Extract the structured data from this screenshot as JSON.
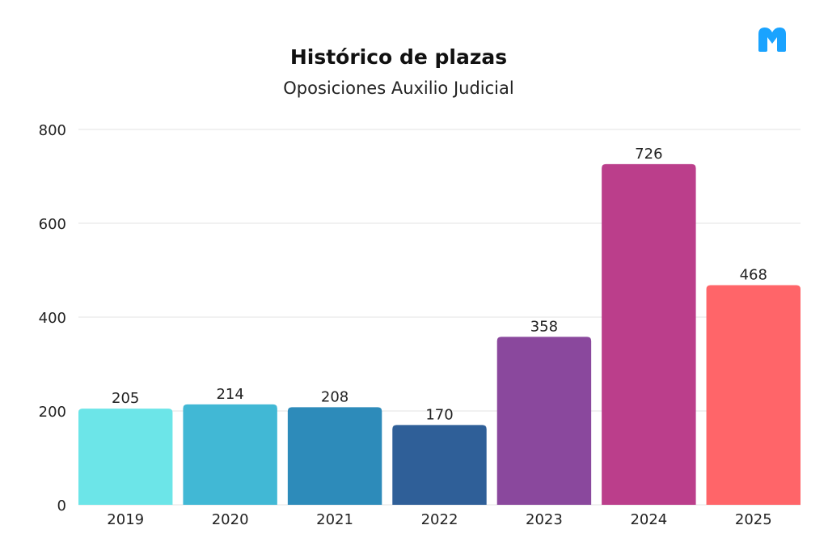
{
  "brand_color": "#1aa3ff",
  "chart_data": {
    "type": "bar",
    "title": "Histórico de plazas",
    "subtitle": "Oposiciones Auxilio Judicial",
    "xlabel": "",
    "ylabel": "",
    "categories": [
      "2019",
      "2020",
      "2021",
      "2022",
      "2023",
      "2024",
      "2025"
    ],
    "values": [
      205,
      214,
      208,
      170,
      358,
      726,
      468
    ],
    "colors": [
      "#6ce5e8",
      "#41b8d5",
      "#2d8bba",
      "#2f5f98",
      "#8a489d",
      "#bb3e8b",
      "#ff6569"
    ],
    "yticks": [
      0,
      200,
      400,
      600,
      800
    ],
    "ylim": [
      0,
      800
    ],
    "grid": true,
    "legend": "none"
  }
}
